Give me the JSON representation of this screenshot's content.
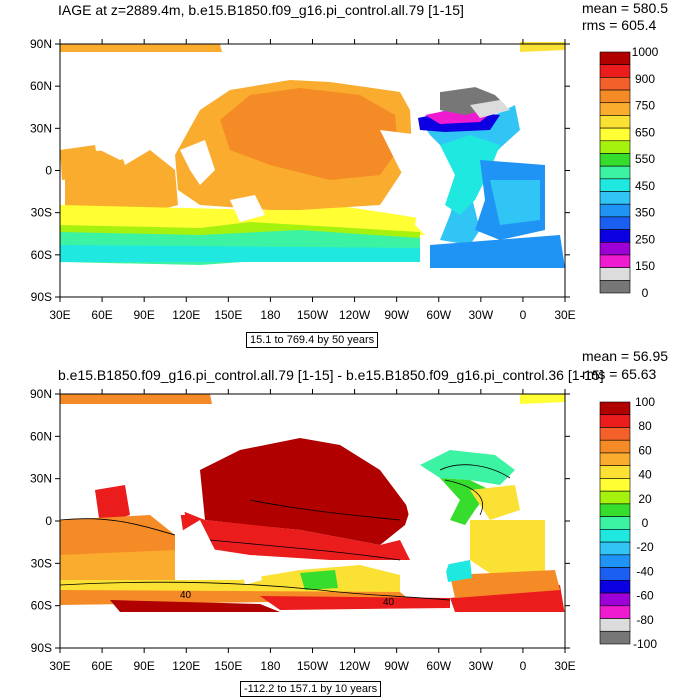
{
  "chart_data": [
    {
      "type": "heatmap",
      "title": "IAGE at z=2889.4m, b.e15.B1850.f09_g16.pi_control.all.79 [1-15]",
      "mean_label": "mean = 580.5",
      "rms_label": "rms = 605.4",
      "caption": "15.1 to 769.4 by 50 years",
      "x_ticks": [
        "30E",
        "60E",
        "90E",
        "120E",
        "150E",
        "180",
        "150W",
        "120W",
        "90W",
        "60W",
        "30W",
        "0",
        "30E"
      ],
      "y_ticks": [
        "90N",
        "60N",
        "30N",
        "0",
        "30S",
        "60S",
        "90S"
      ],
      "colorbar": {
        "labels": [
          "1000",
          "900",
          "750",
          "650",
          "550",
          "450",
          "350",
          "250",
          "150",
          "0"
        ],
        "colors": [
          "#b00000",
          "#ea1c1c",
          "#f4602a",
          "#f58b26",
          "#f9ac2e",
          "#fbe133",
          "#ffff33",
          "#a6f20f",
          "#37dd2c",
          "#3cf3a3",
          "#1ee8e0",
          "#31c5f5",
          "#1f94f4",
          "#1a5ff1",
          "#0c00e2",
          "#9d00d7",
          "#ee1bd1",
          "#dcdcdc",
          "#777777"
        ]
      }
    },
    {
      "type": "heatmap",
      "title": "b.e15.B1850.f09_g16.pi_control.all.79 [1-15] - b.e15.B1850.f09_g16.pi_control.36 [1-15]",
      "mean_label": "mean = 56.95",
      "rms_label": "rms = 65.63",
      "caption": "-112.2 to 157.1 by 10 years",
      "contour_label": "40",
      "x_ticks": [
        "30E",
        "60E",
        "90E",
        "120E",
        "150E",
        "180",
        "150W",
        "120W",
        "90W",
        "60W",
        "30W",
        "0",
        "30E"
      ],
      "y_ticks": [
        "90N",
        "60N",
        "30N",
        "0",
        "30S",
        "60S",
        "90S"
      ],
      "colorbar": {
        "labels": [
          "100",
          "80",
          "60",
          "40",
          "20",
          "0",
          "-20",
          "-40",
          "-60",
          "-80",
          "-100"
        ],
        "colors": [
          "#b00000",
          "#ea1c1c",
          "#f4602a",
          "#f58b26",
          "#f9ac2e",
          "#fbe133",
          "#ffff33",
          "#a6f20f",
          "#37dd2c",
          "#3cf3a3",
          "#1ee8e0",
          "#31c5f5",
          "#1f94f4",
          "#1a5ff1",
          "#0c00e2",
          "#9d00d7",
          "#ee1bd1",
          "#dcdcdc",
          "#777777"
        ]
      }
    }
  ]
}
